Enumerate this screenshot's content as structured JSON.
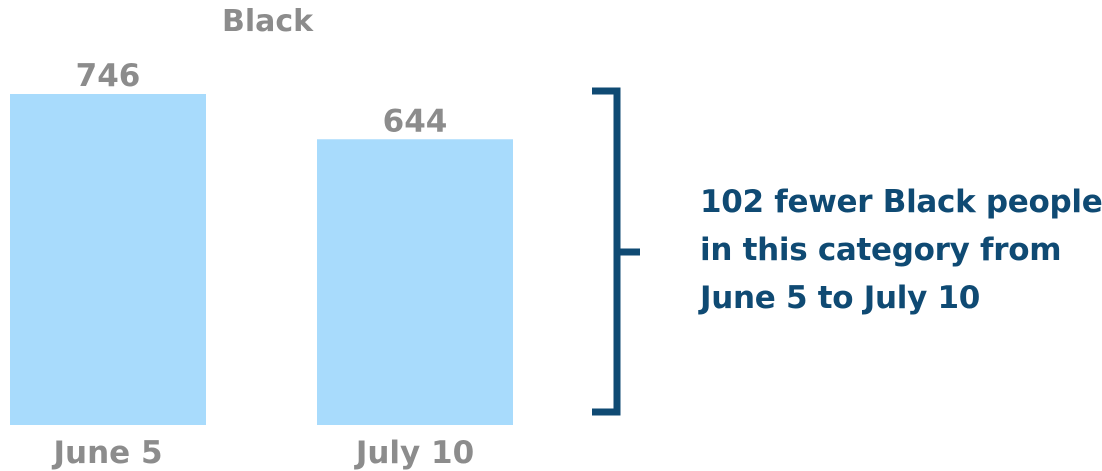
{
  "chart_data": {
    "type": "bar",
    "title": "Black",
    "categories": [
      "June 5",
      "July 10"
    ],
    "values": [
      746,
      644
    ],
    "data_labels": [
      "746",
      "644"
    ],
    "xlabel": "",
    "ylabel": "",
    "grid": false,
    "legend": "none"
  },
  "annotation": {
    "lines": [
      "102 fewer Black people",
      "in this category from",
      "June 5 to July 10"
    ]
  },
  "colors": {
    "bar": "#a8dbfc",
    "label_text": "#8c8c8c",
    "annotation_text": "#0f4a73",
    "bracket": "#0f4a73"
  }
}
